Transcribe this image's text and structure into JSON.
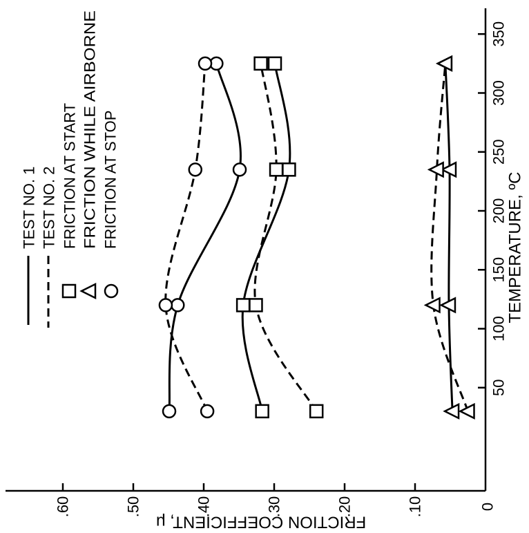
{
  "chart_data": {
    "type": "line",
    "xlabel": "TEMPERATURE, ºC",
    "ylabel": "FRICTION COEFFICIENT, μ",
    "xlim": [
      0,
      350
    ],
    "ylim": [
      0,
      0.65
    ],
    "grid": false,
    "legend_position": "top-left",
    "color": "#000000",
    "x_ticks": [
      {
        "value": 50,
        "label": "50"
      },
      {
        "value": 100,
        "label": "100"
      },
      {
        "value": 150,
        "label": "150"
      },
      {
        "value": 200,
        "label": "200"
      },
      {
        "value": 250,
        "label": "250"
      },
      {
        "value": 300,
        "label": "300"
      },
      {
        "value": 350,
        "label": "350"
      }
    ],
    "y_ticks": [
      {
        "value": 0.6,
        "label": ".60"
      },
      {
        "value": 0.5,
        "label": ".50"
      },
      {
        "value": 0.4,
        "label": ".40"
      },
      {
        "value": 0.3,
        "label": ".30"
      },
      {
        "value": 0.2,
        "label": ".20"
      },
      {
        "value": 0.1,
        "label": ".10"
      },
      {
        "value": 0,
        "label": "0"
      }
    ],
    "legend": [
      {
        "label": "TEST NO. 1",
        "line": "solid"
      },
      {
        "label": "TEST NO. 2",
        "line": "dashed"
      },
      {
        "label": "FRICTION AT START",
        "marker": "square"
      },
      {
        "label": "FRICTION WHILE AIRBORNE",
        "marker": "triangle"
      },
      {
        "label": "FRICTION AT STOP",
        "marker": "circle"
      }
    ],
    "series": [
      {
        "line": "solid",
        "marker": "square",
        "x": [
          30,
          120,
          235,
          325
        ],
        "y": [
          0.317,
          0.344,
          0.279,
          0.299
        ]
      },
      {
        "line": "solid",
        "marker": "triangle",
        "x": [
          30,
          120,
          235,
          325
        ],
        "y": [
          0.047,
          0.052,
          0.051,
          0.057
        ]
      },
      {
        "line": "solid",
        "marker": "circle",
        "x": [
          30,
          120,
          235,
          325
        ],
        "y": [
          0.449,
          0.437,
          0.349,
          0.382
        ]
      },
      {
        "line": "dashed",
        "marker": "square",
        "x": [
          30,
          120,
          235,
          325
        ],
        "y": [
          0.24,
          0.326,
          0.297,
          0.319
        ]
      },
      {
        "line": "dashed",
        "marker": "triangle",
        "x": [
          30,
          120,
          235,
          325
        ],
        "y": [
          0.025,
          0.074,
          0.069,
          0.057
        ]
      },
      {
        "line": "dashed",
        "marker": "circle",
        "x": [
          30,
          120,
          235,
          325
        ],
        "y": [
          0.395,
          0.454,
          0.412,
          0.398
        ]
      }
    ]
  }
}
